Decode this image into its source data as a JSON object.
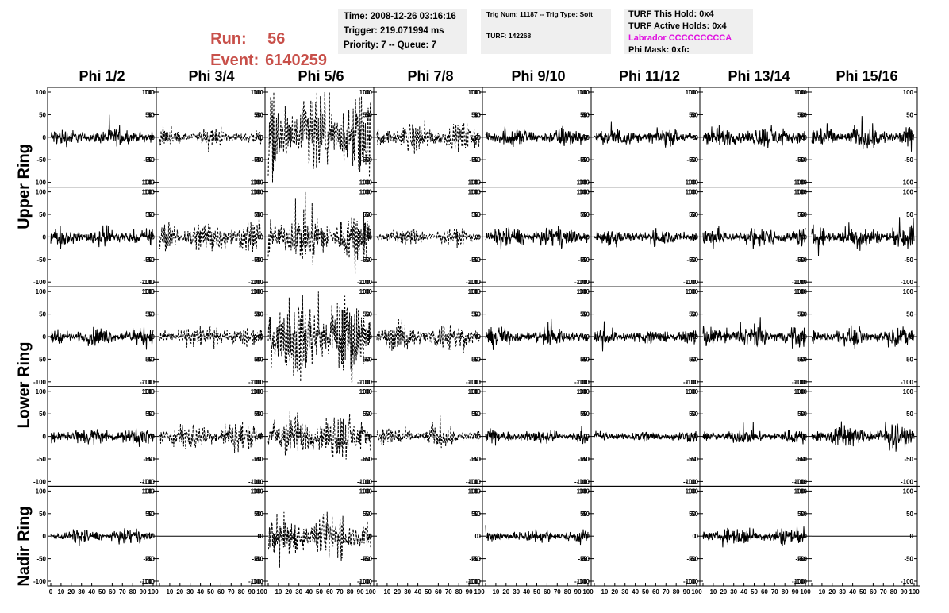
{
  "header": {
    "run_label": "Run:",
    "run_value": "56",
    "event_label": "Event:",
    "event_value": "6140259",
    "time_text": "Time: 2008-12-26 03:16:16",
    "trigger_text": "Trigger: 219.071994 ms",
    "priority_text": "Priority: 7 -- Queue: 7",
    "trig_num_text": "Trig Num: 11187 -- Trig Type: Soft",
    "turf_text": "TURF: 142268",
    "turf_hold_text": "TURF This Hold: 0x4",
    "turf_active_text": "TURF Active Holds: 0x4",
    "labrador_text": "Labrador CCCCCCCCCA",
    "phi_mask_text": "Phi Mask: 0xfc"
  },
  "colors": {
    "run_event": "#c8504a",
    "labrador": "#e010e0",
    "info_box": "#efefef"
  },
  "columns": [
    "Phi 1/2",
    "Phi 3/4",
    "Phi 5/6",
    "Phi 7/8",
    "Phi 9/10",
    "Phi 11/12",
    "Phi 13/14",
    "Phi 15/16"
  ],
  "rings": [
    {
      "label": "Upper Ring"
    },
    {
      "label": "Lower Ring"
    },
    {
      "label": "Nadir Ring"
    }
  ],
  "chart_data": {
    "type": "line",
    "xlim": [
      0,
      100
    ],
    "ylim": [
      -100,
      100
    ],
    "y_ticks": [
      -100,
      -50,
      0,
      50,
      100
    ],
    "x_ticks": [
      0,
      10,
      20,
      30,
      40,
      50,
      60,
      70,
      80,
      90,
      100
    ],
    "panel_rows": 5,
    "panel_cols": 8,
    "samples_per_trace": 260,
    "panels": [
      [
        {
          "amp": 15,
          "style": "solid"
        },
        {
          "amp": 14,
          "style": "dashed"
        },
        {
          "amp": 75,
          "style": "dashed"
        },
        {
          "amp": 25,
          "style": "dashed"
        },
        {
          "amp": 17,
          "style": "solid"
        },
        {
          "amp": 15,
          "style": "solid"
        },
        {
          "amp": 18,
          "style": "solid"
        },
        {
          "amp": 20,
          "style": "solid"
        }
      ],
      [
        {
          "amp": 17,
          "style": "solid"
        },
        {
          "amp": 30,
          "style": "dashed"
        },
        {
          "amp": 45,
          "style": "dashed"
        },
        {
          "amp": 14,
          "style": "dashed"
        },
        {
          "amp": 17,
          "style": "solid"
        },
        {
          "amp": 14,
          "style": "solid"
        },
        {
          "amp": 17,
          "style": "solid"
        },
        {
          "amp": 20,
          "style": "solid"
        }
      ],
      [
        {
          "amp": 15,
          "style": "solid"
        },
        {
          "amp": 18,
          "style": "dashed"
        },
        {
          "amp": 70,
          "style": "dashed"
        },
        {
          "amp": 25,
          "style": "dashed"
        },
        {
          "amp": 16,
          "style": "solid"
        },
        {
          "amp": 14,
          "style": "solid"
        },
        {
          "amp": 18,
          "style": "solid"
        },
        {
          "amp": 15,
          "style": "solid"
        }
      ],
      [
        {
          "amp": 15,
          "style": "solid"
        },
        {
          "amp": 25,
          "style": "dashed"
        },
        {
          "amp": 40,
          "style": "dashed"
        },
        {
          "amp": 18,
          "style": "dashed"
        },
        {
          "amp": 12,
          "style": "solid"
        },
        {
          "amp": 10,
          "style": "solid"
        },
        {
          "amp": 12,
          "style": "solid"
        },
        {
          "amp": 20,
          "style": "solid"
        }
      ],
      [
        {
          "amp": 12,
          "style": "solid"
        },
        {
          "amp": 0,
          "style": "solid"
        },
        {
          "amp": 40,
          "style": "dashed"
        },
        {
          "amp": null,
          "style": "none"
        },
        {
          "amp": 12,
          "style": "solid"
        },
        {
          "amp": null,
          "style": "none"
        },
        {
          "amp": 15,
          "style": "solid"
        },
        {
          "amp": 0,
          "style": "solid"
        }
      ]
    ]
  }
}
